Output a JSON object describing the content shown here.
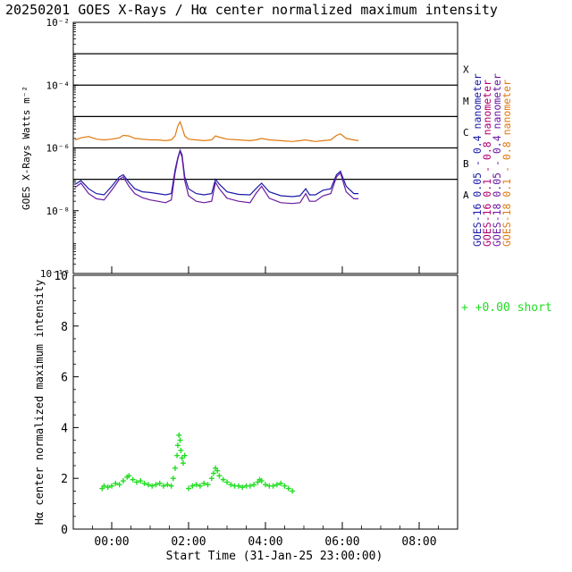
{
  "title": "20250201 GOES X-Rays / Hα center normalized maximum intensity",
  "colors": {
    "goes16_short": "#1a1aa8",
    "goes16_long": "#b00070",
    "goes18_short": "#6a1aa0",
    "goes18_long": "#e07a10",
    "halpha": "#22dd22"
  },
  "chart_data": [
    {
      "type": "line",
      "ylabel": "GOES X-Rays Watts m⁻²",
      "yscale": "log",
      "ylim": [
        1e-10,
        0.01
      ],
      "y_ticks": [
        {
          "value": -2,
          "label": "10⁻²"
        },
        {
          "value": -4,
          "label": "10⁻⁴"
        },
        {
          "value": -6,
          "label": "10⁻⁶"
        },
        {
          "value": -8,
          "label": "10⁻⁸"
        },
        {
          "value": -10,
          "label": "10⁻¹⁰"
        }
      ],
      "flare_classes": [
        {
          "label": "X",
          "value": 0.0001
        },
        {
          "label": "M",
          "value": 1e-05
        },
        {
          "label": "C",
          "value": 1e-06
        },
        {
          "label": "B",
          "value": 1e-07
        },
        {
          "label": "A",
          "value": 1e-08
        }
      ],
      "legend": [
        {
          "text": "GOES-16  0.05 - 0.4  nanometer",
          "color": "#1a1aa8"
        },
        {
          "text": "GOES-16  0.1 - 0.8  nanometer",
          "color": "#b00070"
        },
        {
          "text": "GOES-18  0.05 - 0.4  nanometer",
          "color": "#6a1aa0"
        },
        {
          "text": "GOES-18  0.1 - 0.8  nanometer",
          "color": "#e07a10"
        }
      ],
      "x_hours": [
        -0.95,
        -0.8,
        -0.6,
        -0.4,
        -0.2,
        0.0,
        0.2,
        0.3,
        0.45,
        0.6,
        0.8,
        1.0,
        1.2,
        1.4,
        1.55,
        1.65,
        1.72,
        1.78,
        1.83,
        1.9,
        2.0,
        2.2,
        2.4,
        2.6,
        2.7,
        2.8,
        3.0,
        3.3,
        3.6,
        3.75,
        3.9,
        4.1,
        4.4,
        4.7,
        4.9,
        5.05,
        5.15,
        5.3,
        5.5,
        5.7,
        5.85,
        5.95,
        6.1,
        6.3,
        6.42
      ],
      "series": [
        {
          "name": "GOES-18 0.1-0.8 nm",
          "color": "#e07a10",
          "values": [
            1.8e-06,
            2.1e-06,
            2.3e-06,
            1.9e-06,
            1.8e-06,
            1.9e-06,
            2.1e-06,
            2.5e-06,
            2.4e-06,
            2e-06,
            1.9e-06,
            1.8e-06,
            1.8e-06,
            1.7e-06,
            1.8e-06,
            2.4e-06,
            5e-06,
            6.8e-06,
            4.5e-06,
            2.4e-06,
            1.9e-06,
            1.8e-06,
            1.7e-06,
            1.8e-06,
            2.4e-06,
            2.2e-06,
            1.9e-06,
            1.8e-06,
            1.7e-06,
            1.8e-06,
            2e-06,
            1.8e-06,
            1.7e-06,
            1.6e-06,
            1.7e-06,
            1.8e-06,
            1.7e-06,
            1.6e-06,
            1.7e-06,
            1.8e-06,
            2.5e-06,
            2.8e-06,
            2e-06,
            1.8e-06,
            1.7e-06
          ]
        },
        {
          "name": "GOES-16 0.05-0.4 nm",
          "color": "#1a1aa8",
          "values": [
            7e-08,
            9e-08,
            5e-08,
            3.5e-08,
            3.2e-08,
            6e-08,
            1.2e-07,
            1.4e-07,
            8e-08,
            5e-08,
            4e-08,
            3.8e-08,
            3.5e-08,
            3.2e-08,
            3.5e-08,
            2e-07,
            5e-07,
            8.5e-07,
            6e-07,
            1.2e-07,
            5e-08,
            3.5e-08,
            3.2e-08,
            3.5e-08,
            1e-07,
            7e-08,
            4e-08,
            3.3e-08,
            3.2e-08,
            5e-08,
            7.5e-08,
            4e-08,
            3e-08,
            2.8e-08,
            3e-08,
            5e-08,
            3.2e-08,
            3.2e-08,
            4.5e-08,
            5e-08,
            1.4e-07,
            1.8e-07,
            6e-08,
            3.5e-08,
            3.5e-08
          ]
        },
        {
          "name": "GOES-18 0.05-0.4 nm",
          "color": "#6a1aa0",
          "values": [
            5.5e-08,
            7.5e-08,
            3.5e-08,
            2.4e-08,
            2.2e-08,
            4.5e-08,
            1e-07,
            1.2e-07,
            6e-08,
            3.5e-08,
            2.6e-08,
            2.2e-08,
            2e-08,
            1.8e-08,
            2.2e-08,
            1.6e-07,
            4.5e-07,
            8e-07,
            5e-07,
            9e-08,
            3e-08,
            2e-08,
            1.8e-08,
            2e-08,
            8e-08,
            5e-08,
            2.5e-08,
            2e-08,
            1.8e-08,
            3.5e-08,
            6e-08,
            2.5e-08,
            1.8e-08,
            1.7e-08,
            1.8e-08,
            3.5e-08,
            2e-08,
            2e-08,
            3e-08,
            3.5e-08,
            1.2e-07,
            1.6e-07,
            4e-08,
            2.4e-08,
            2.4e-08
          ]
        }
      ],
      "grid": true
    },
    {
      "type": "scatter",
      "ylabel": "Hα center normalized maximum intensity",
      "xlabel": "Start Time (31-Jan-25 23:00:00)",
      "ylim": [
        0,
        10
      ],
      "y_ticks": [
        0,
        2,
        4,
        6,
        8,
        10
      ],
      "xlim": [
        -1.0,
        9.0
      ],
      "x_ticks": [
        {
          "value": 0,
          "label": "00:00"
        },
        {
          "value": 2,
          "label": "02:00"
        },
        {
          "value": 4,
          "label": "04:00"
        },
        {
          "value": 6,
          "label": "06:00"
        },
        {
          "value": 8,
          "label": "08:00"
        }
      ],
      "legend": [
        {
          "text": "+   +0.00 short",
          "color": "#22dd22"
        }
      ],
      "marker": "+",
      "color": "#22dd22",
      "x_hours": [
        -0.25,
        -0.2,
        -0.1,
        0.0,
        0.1,
        0.2,
        0.3,
        0.4,
        0.45,
        0.55,
        0.65,
        0.75,
        0.85,
        0.95,
        1.05,
        1.15,
        1.25,
        1.35,
        1.45,
        1.55,
        1.6,
        1.65,
        1.7,
        1.72,
        1.75,
        1.78,
        1.8,
        1.83,
        1.86,
        1.9,
        2.0,
        2.1,
        2.2,
        2.3,
        2.4,
        2.5,
        2.6,
        2.65,
        2.7,
        2.75,
        2.8,
        2.9,
        3.0,
        3.1,
        3.2,
        3.3,
        3.4,
        3.5,
        3.6,
        3.7,
        3.8,
        3.85,
        3.9,
        4.0,
        4.1,
        4.2,
        4.3,
        4.4,
        4.5,
        4.6,
        4.7
      ],
      "values": [
        1.6,
        1.7,
        1.65,
        1.7,
        1.8,
        1.75,
        1.9,
        2.05,
        2.1,
        1.95,
        1.85,
        1.9,
        1.8,
        1.75,
        1.7,
        1.75,
        1.8,
        1.7,
        1.75,
        1.7,
        2.0,
        2.4,
        2.9,
        3.3,
        3.7,
        3.5,
        3.1,
        2.8,
        2.6,
        2.9,
        1.6,
        1.7,
        1.75,
        1.7,
        1.8,
        1.75,
        2.0,
        2.2,
        2.4,
        2.3,
        2.1,
        1.95,
        1.85,
        1.75,
        1.7,
        1.7,
        1.65,
        1.7,
        1.7,
        1.75,
        1.85,
        1.95,
        1.9,
        1.75,
        1.7,
        1.7,
        1.75,
        1.8,
        1.7,
        1.6,
        1.5
      ]
    }
  ]
}
